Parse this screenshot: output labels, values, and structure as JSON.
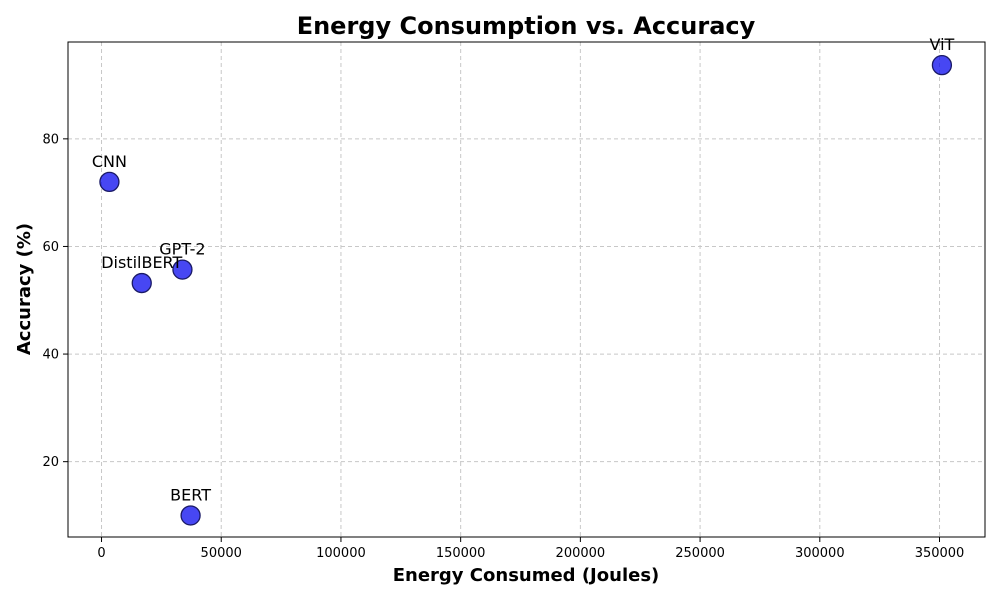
{
  "chart_data": {
    "type": "scatter",
    "title": "Energy Consumption vs. Accuracy",
    "xlabel": "Energy Consumed (Joules)",
    "ylabel": "Accuracy (%)",
    "xlim": [
      -14000,
      369000
    ],
    "ylim": [
      6,
      98
    ],
    "xticks": [
      0,
      50000,
      100000,
      150000,
      200000,
      250000,
      300000,
      350000
    ],
    "yticks": [
      20,
      40,
      60,
      80
    ],
    "grid": true,
    "marker_color": "#0000ee",
    "marker_edge_color": "#1a1a66",
    "points": [
      {
        "label": "ViT",
        "x": 351000,
        "y": 93.7
      },
      {
        "label": "CNN",
        "x": 3300,
        "y": 72.0
      },
      {
        "label": "GPT-2",
        "x": 33800,
        "y": 55.7
      },
      {
        "label": "DistilBERT",
        "x": 16800,
        "y": 53.2
      },
      {
        "label": "BERT",
        "x": 37200,
        "y": 10.0
      }
    ]
  }
}
